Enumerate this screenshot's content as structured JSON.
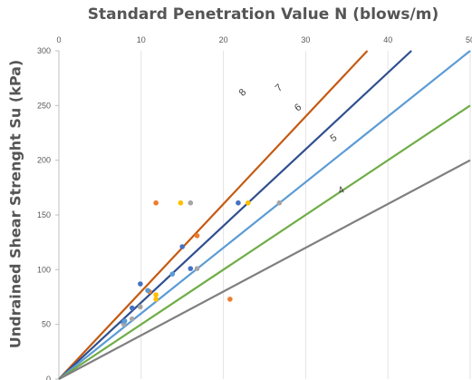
{
  "chart_data": {
    "type": "scatter",
    "title": "Standard Penetration Value N (blows/m)",
    "ylabel": "Undrained Shear Strenght Su (kPa)",
    "xlim": [
      0,
      50
    ],
    "ylim": [
      0,
      300
    ],
    "x_axis_position": "top",
    "x_ticks": [
      0,
      10,
      20,
      30,
      40,
      50
    ],
    "y_ticks": [
      0,
      50,
      100,
      150,
      200,
      250,
      300
    ],
    "grid": "vertical",
    "lines": [
      {
        "label": "8",
        "slope": 8,
        "color": "#C55A11"
      },
      {
        "label": "7",
        "slope": 7,
        "color": "#2F4F8F"
      },
      {
        "label": "6",
        "slope": 6,
        "color": "#5B9BD5"
      },
      {
        "label": "5",
        "slope": 5,
        "color": "#70AD47"
      },
      {
        "label": "4",
        "slope": 4,
        "color": "#7F7F7F"
      }
    ],
    "series": [
      {
        "color": "#4472C4",
        "points": [
          [
            7.8,
            52
          ],
          [
            8.9,
            65
          ],
          [
            9.9,
            87
          ],
          [
            15.0,
            121
          ],
          [
            16.0,
            101
          ],
          [
            21.8,
            161
          ]
        ]
      },
      {
        "color": "#ED7D31",
        "points": [
          [
            11.8,
            161
          ],
          [
            16.8,
            131
          ],
          [
            11.0,
            80
          ],
          [
            20.8,
            73
          ]
        ]
      },
      {
        "color": "#A5A5A5",
        "points": [
          [
            16.0,
            161
          ],
          [
            26.8,
            161
          ],
          [
            16.8,
            101
          ],
          [
            8.9,
            55
          ],
          [
            7.9,
            50
          ],
          [
            9.9,
            66
          ]
        ]
      },
      {
        "color": "#FFC000",
        "points": [
          [
            14.8,
            161
          ],
          [
            23.0,
            161
          ],
          [
            11.8,
            77
          ],
          [
            11.8,
            73
          ]
        ]
      },
      {
        "color": "#5B9BD5",
        "points": [
          [
            13.8,
            96
          ],
          [
            10.8,
            81
          ],
          [
            8.0,
            53
          ]
        ]
      }
    ]
  }
}
